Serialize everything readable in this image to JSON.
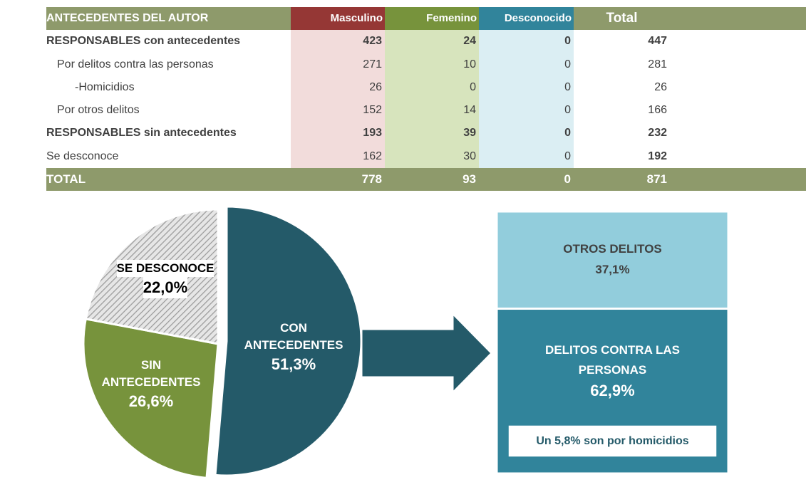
{
  "table": {
    "header": [
      "ANTECEDENTES DEL AUTOR",
      "Masculino",
      "Femenino",
      "Desconocido",
      "Total"
    ],
    "rows": [
      [
        "RESPONSABLES con antecedentes",
        423,
        24,
        0,
        447
      ],
      [
        "Por delitos contra las personas",
        271,
        10,
        0,
        281
      ],
      [
        "-Homicidios",
        26,
        0,
        0,
        26
      ],
      [
        "Por otros delitos",
        152,
        14,
        0,
        166
      ],
      [
        "RESPONSABLES sin antecedentes",
        193,
        39,
        0,
        232
      ],
      [
        "Se desconoce",
        162,
        30,
        0,
        192
      ]
    ],
    "footer": [
      "TOTAL",
      778,
      93,
      0,
      871
    ]
  },
  "chart_data": [
    {
      "type": "pie",
      "categories": [
        "CON ANTECEDENTES",
        "SIN ANTECEDENTES",
        "SE DESCONOCE"
      ],
      "values": [
        51.3,
        26.6,
        22.0
      ],
      "value_labels": [
        "51,3%",
        "26,6%",
        "22,0%"
      ],
      "colors": [
        "#245a69",
        "#77933c",
        "#bfbfbf"
      ],
      "hatched": [
        false,
        false,
        true
      ]
    },
    {
      "type": "bar",
      "stacked": true,
      "categories": [
        "OTROS DELITOS",
        "DELITOS CONTRA LAS PERSONAS"
      ],
      "values": [
        37.1,
        62.9
      ],
      "value_labels": [
        "37,1%",
        "62,9%"
      ],
      "colors": [
        "#92cddc",
        "#31849b"
      ],
      "annotation": "Un 5,8% son por homicidios"
    }
  ]
}
